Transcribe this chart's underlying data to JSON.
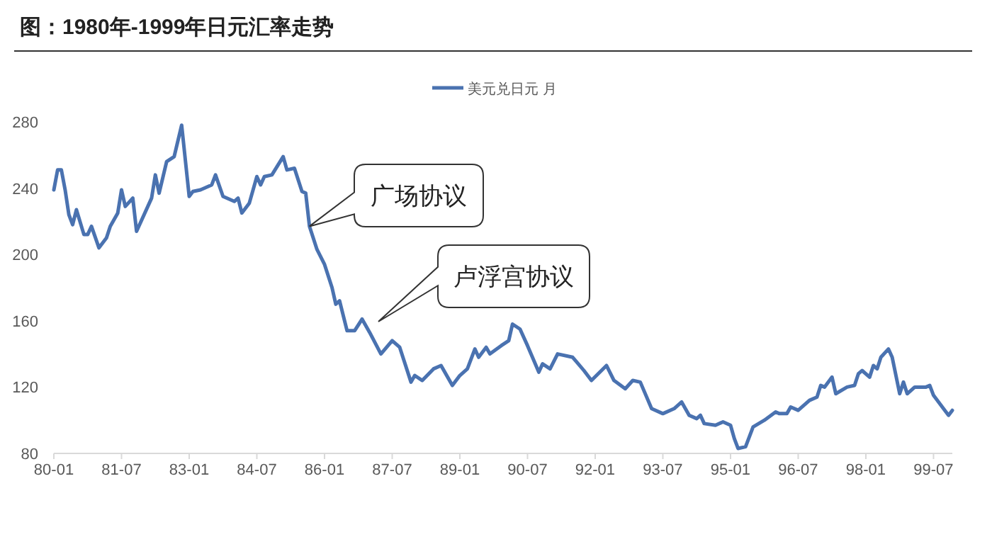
{
  "chart_data": {
    "type": "line",
    "title": "图：1980年-1999年日元汇率走势",
    "legend": "top",
    "marker": "none",
    "line_style": "solid",
    "grid": false,
    "x": [
      "1980-01",
      "1980-02",
      "1980-03",
      "1980-04",
      "1980-05",
      "1980-06",
      "1980-07",
      "1980-09",
      "1980-10",
      "1980-11",
      "1981-01",
      "1981-03",
      "1981-04",
      "1981-06",
      "1981-07",
      "1981-08",
      "1981-10",
      "1981-11",
      "1982-03",
      "1982-04",
      "1982-05",
      "1982-07",
      "1982-09",
      "1982-11",
      "1983-01",
      "1983-02",
      "1983-04",
      "1983-07",
      "1983-08",
      "1983-10",
      "1984-01",
      "1984-02",
      "1984-03",
      "1984-05",
      "1984-07",
      "1984-08",
      "1984-09",
      "1984-11",
      "1985-02",
      "1985-03",
      "1985-05",
      "1985-07",
      "1985-08",
      "1985-09",
      "1985-11",
      "1986-01",
      "1986-03",
      "1986-04",
      "1986-05",
      "1986-07",
      "1986-09",
      "1986-11",
      "1987-01",
      "1987-04",
      "1987-07",
      "1987-09",
      "1987-12",
      "1988-01",
      "1988-03",
      "1988-06",
      "1988-08",
      "1988-11",
      "1989-01",
      "1989-03",
      "1989-05",
      "1989-06",
      "1989-08",
      "1989-09",
      "1989-12",
      "1990-02",
      "1990-03",
      "1990-05",
      "1990-07",
      "1990-10",
      "1990-11",
      "1991-01",
      "1991-03",
      "1991-07",
      "1991-10",
      "1991-12",
      "1992-04",
      "1992-06",
      "1992-09",
      "1992-11",
      "1993-01",
      "1993-04",
      "1993-07",
      "1993-10",
      "1993-12",
      "1994-02",
      "1994-04",
      "1994-05",
      "1994-06",
      "1994-09",
      "1994-11",
      "1995-01",
      "1995-02",
      "1995-03",
      "1995-05",
      "1995-07",
      "1995-10",
      "1996-01",
      "1996-02",
      "1996-04",
      "1996-05",
      "1996-07",
      "1996-10",
      "1996-12",
      "1997-01",
      "1997-02",
      "1997-04",
      "1997-05",
      "1997-08",
      "1997-10",
      "1997-11",
      "1997-12",
      "1998-02",
      "1998-03",
      "1998-04",
      "1998-05",
      "1998-07",
      "1998-08",
      "1998-10",
      "1998-11",
      "1998-12",
      "1999-02",
      "1999-05",
      "1999-06",
      "1999-07",
      "1999-10",
      "1999-11",
      "1999-12"
    ],
    "series": [
      {
        "name": "美元兑日元 月",
        "color": "#4a72b0",
        "values": [
          239,
          251,
          251,
          239,
          224,
          218,
          227,
          212,
          212,
          217,
          204,
          210,
          217,
          225,
          239,
          229,
          234,
          214,
          234,
          248,
          237,
          256,
          259,
          278,
          235,
          238,
          239,
          242,
          248,
          235,
          232,
          234,
          225,
          231,
          247,
          242,
          247,
          248,
          259,
          251,
          252,
          238,
          237,
          217,
          203,
          194,
          180,
          170,
          172,
          154,
          154,
          161,
          153,
          140,
          148,
          144,
          123,
          127,
          124,
          131,
          133,
          121,
          127,
          131,
          143,
          138,
          144,
          140,
          145,
          148,
          158,
          155,
          145,
          129,
          134,
          131,
          140,
          138,
          130,
          124,
          133,
          124,
          119,
          124,
          123,
          107,
          104,
          107,
          111,
          103,
          101,
          103,
          98,
          97,
          99,
          97,
          89,
          83,
          84,
          96,
          100,
          105,
          104,
          104,
          108,
          106,
          112,
          114,
          121,
          120,
          126,
          116,
          120,
          121,
          128,
          130,
          126,
          133,
          131,
          138,
          143,
          138,
          116,
          123,
          116,
          120,
          120,
          121,
          115,
          106,
          103,
          106
        ]
      }
    ],
    "xlim": [
      "1980-01",
      "1999-12"
    ],
    "xticks": [
      {
        "value": "1980-01",
        "label": "80-01"
      },
      {
        "value": "1981-07",
        "label": "81-07"
      },
      {
        "value": "1983-01",
        "label": "83-01"
      },
      {
        "value": "1984-07",
        "label": "84-07"
      },
      {
        "value": "1986-01",
        "label": "86-01"
      },
      {
        "value": "1987-07",
        "label": "87-07"
      },
      {
        "value": "1989-01",
        "label": "89-01"
      },
      {
        "value": "1990-07",
        "label": "90-07"
      },
      {
        "value": "1992-01",
        "label": "92-01"
      },
      {
        "value": "1993-07",
        "label": "93-07"
      },
      {
        "value": "1995-01",
        "label": "95-01"
      },
      {
        "value": "1996-07",
        "label": "96-07"
      },
      {
        "value": "1998-01",
        "label": "98-01"
      },
      {
        "value": "1999-07",
        "label": "99-07"
      }
    ],
    "ylim": [
      80,
      280
    ],
    "yticks": [
      80,
      120,
      160,
      200,
      240,
      280
    ],
    "annotations": [
      {
        "text": "广场协议",
        "x": "1985-09",
        "y": 217
      },
      "卢浮宫协议"
    ]
  }
}
